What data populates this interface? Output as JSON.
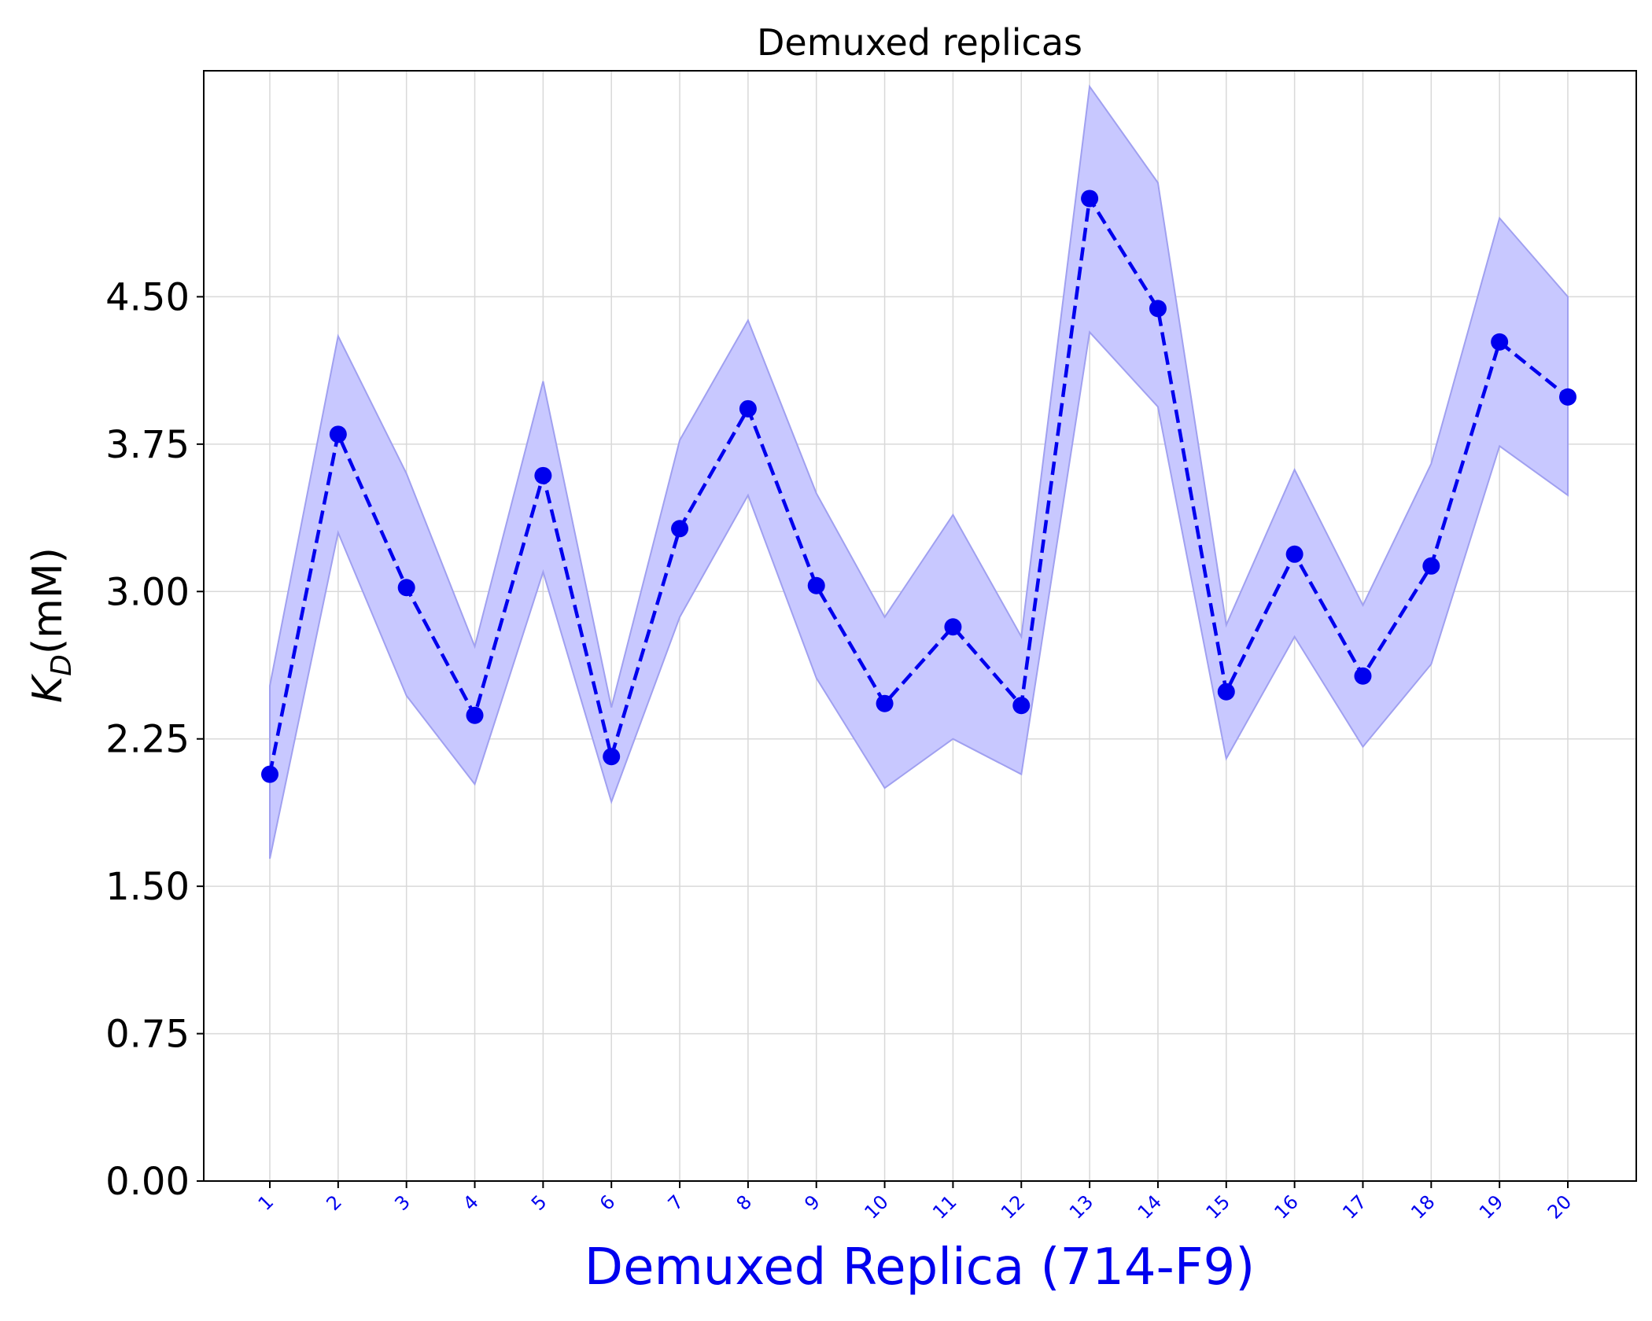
{
  "chart_data": {
    "type": "line",
    "title": "Demuxed replicas",
    "xlabel": "Demuxed Replica (714-F9)",
    "ylabel_main": "K",
    "ylabel_sub": "D",
    "ylabel_unit": "(mM)",
    "categories": [
      "1",
      "2",
      "3",
      "4",
      "5",
      "6",
      "7",
      "8",
      "9",
      "10",
      "11",
      "12",
      "13",
      "14",
      "15",
      "16",
      "17",
      "18",
      "19",
      "20"
    ],
    "y_ticks": [
      "0.00",
      "0.75",
      "1.50",
      "2.25",
      "3.00",
      "3.75",
      "4.50"
    ],
    "ylim": [
      0,
      5.65
    ],
    "grid": true,
    "series": [
      {
        "values": [
          2.07,
          3.8,
          3.02,
          2.37,
          3.59,
          2.16,
          3.32,
          3.93,
          3.03,
          2.43,
          2.82,
          2.42,
          5.0,
          4.44,
          2.49,
          3.19,
          2.57,
          3.13,
          4.27,
          3.99
        ],
        "lower": [
          1.64,
          3.3,
          2.47,
          2.02,
          3.1,
          1.93,
          2.87,
          3.49,
          2.56,
          2.0,
          2.25,
          2.07,
          4.32,
          3.94,
          2.15,
          2.77,
          2.21,
          2.63,
          3.74,
          3.49
        ],
        "upper": [
          2.52,
          4.3,
          3.6,
          2.72,
          4.07,
          2.41,
          3.77,
          4.38,
          3.5,
          2.87,
          3.39,
          2.77,
          5.57,
          5.08,
          2.83,
          3.62,
          2.93,
          3.65,
          4.9,
          4.5
        ]
      }
    ],
    "colors": {
      "line": "#0000ee",
      "band": "#c8c8ff",
      "band_edge": "#a0a0f0",
      "axis_label": "#0000ee",
      "grid": "#d9d9d9"
    }
  }
}
